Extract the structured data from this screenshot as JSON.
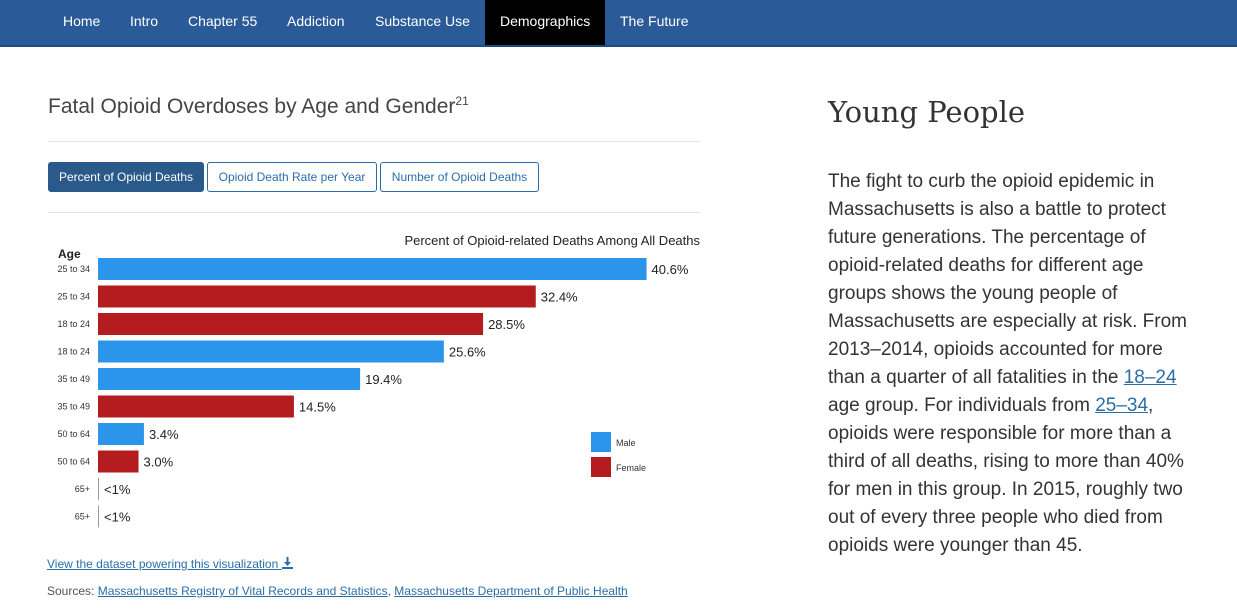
{
  "nav": {
    "items": [
      "Home",
      "Intro",
      "Chapter 55",
      "Addiction",
      "Substance Use",
      "Demographics",
      "The Future"
    ],
    "active_index": 5
  },
  "chart_panel": {
    "title": "Fatal Opioid Overdoses by Age and Gender",
    "footnote": "21",
    "tabs": [
      "Percent of Opioid Deaths",
      "Opioid Death Rate per Year",
      "Number of Opioid Deaths"
    ],
    "active_tab": 0,
    "dataset_link": "View the dataset powering this visualization",
    "sources_label": "Sources:",
    "sources": [
      "Massachusetts Registry of Vital Records and Statistics",
      "Massachusetts Department of Public Health"
    ]
  },
  "chart_data": {
    "type": "bar",
    "orientation": "horizontal",
    "title": "Percent of Opioid-related Deaths Among All Deaths",
    "ylabel": "Age",
    "xlim": [
      0,
      45
    ],
    "grid": false,
    "legend_position": "right",
    "colors": {
      "Male": "#2b95eb",
      "Female": "#b51c1f"
    },
    "bars": [
      {
        "category": "25 to 34",
        "series": "Male",
        "value": 40.6,
        "label": "40.6%"
      },
      {
        "category": "25 to 34",
        "series": "Female",
        "value": 32.4,
        "label": "32.4%"
      },
      {
        "category": "18 to 24",
        "series": "Female",
        "value": 28.5,
        "label": "28.5%"
      },
      {
        "category": "18 to 24",
        "series": "Male",
        "value": 25.6,
        "label": "25.6%"
      },
      {
        "category": "35 to 49",
        "series": "Male",
        "value": 19.4,
        "label": "19.4%"
      },
      {
        "category": "35 to 49",
        "series": "Female",
        "value": 14.5,
        "label": "14.5%"
      },
      {
        "category": "50 to 64",
        "series": "Male",
        "value": 3.4,
        "label": "3.4%"
      },
      {
        "category": "50 to 64",
        "series": "Female",
        "value": 3.0,
        "label": "3.0%"
      },
      {
        "category": "65+",
        "series": "Male",
        "value": 0.5,
        "label": "<1%"
      },
      {
        "category": "65+",
        "series": "Female",
        "value": 0.5,
        "label": "<1%"
      }
    ],
    "legend": [
      "Male",
      "Female"
    ]
  },
  "side": {
    "title": "Young People",
    "p_before": "The fight to curb the opioid epidemic in Massachusetts is also a battle to protect future generations. The percentage of opioid-related deaths for different age groups shows the young people of Massachusetts are especially at risk. From 2013–2014, opioids accounted for more than a quarter of all fatalities in the ",
    "link1": "18–24",
    "p_middle": " age group. For individuals from ",
    "link2": "25–34",
    "p_after": ", opioids were responsible for more than a third of all deaths, rising to more than 40% for men in this group. In 2015, roughly two out of every three people who died from opioids were younger than 45."
  }
}
